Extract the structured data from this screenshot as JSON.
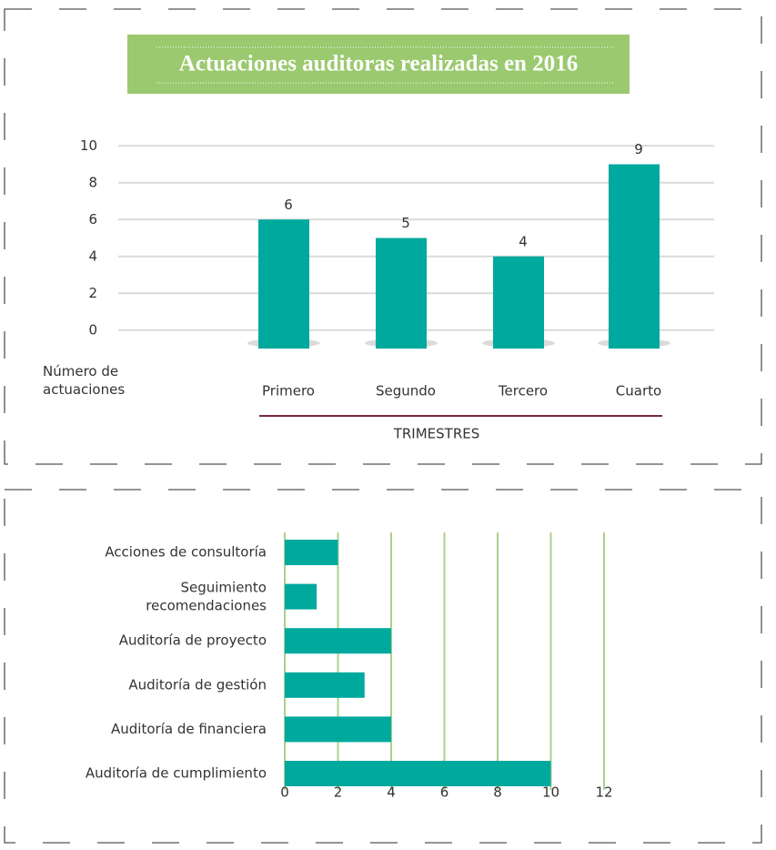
{
  "chart_data": [
    {
      "type": "bar",
      "title": "Actuaciones auditoras realizadas en 2016",
      "categories": [
        "Primero",
        "Segundo",
        "Tercero",
        "Cuarto"
      ],
      "values": [
        6,
        5,
        4,
        9
      ],
      "color": "#00a99d",
      "ylabel": "Número de\nactuaciones",
      "xlabel": "TRIMESTRES",
      "ylim": [
        -1,
        11
      ],
      "yticks": [
        0,
        2,
        4,
        6,
        8,
        10
      ],
      "grid": true
    },
    {
      "type": "hbar",
      "categories": [
        "Acciones de consultoría",
        "Seguimiento\nrecomendaciones",
        "Auditoría de proyecto",
        "Auditoría de gestión",
        "Auditoría de financiera",
        "Auditoría de cumplimiento"
      ],
      "values": [
        2,
        1.2,
        4,
        3,
        4,
        10
      ],
      "color": "#00a99d",
      "xlim": [
        0,
        12
      ],
      "xticks": [
        0,
        2,
        4,
        6,
        8,
        10,
        12
      ],
      "grid": true
    }
  ]
}
